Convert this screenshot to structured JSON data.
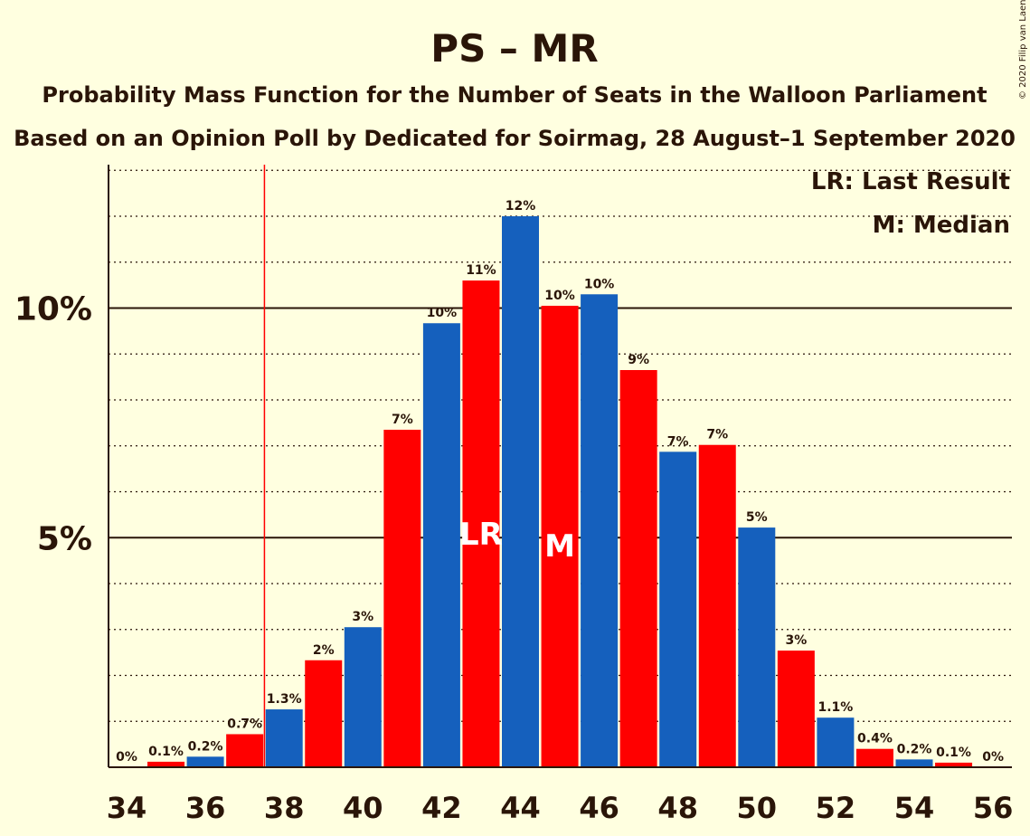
{
  "chart_data": {
    "type": "bar",
    "title": "PS – MR",
    "subtitle_lines": [
      "Probability Mass Function for the Number of Seats in the Walloon Parliament",
      "Based on an Opinion Poll by Dedicated for Soirmag, 28 August–1 September 2020"
    ],
    "copyright": "© 2020 Filip van Laenen",
    "legend": [
      "LR: Last Result",
      "M: Median"
    ],
    "xlabel": "",
    "ylabel": "",
    "categories": [
      34,
      35,
      36,
      37,
      38,
      39,
      40,
      41,
      42,
      43,
      44,
      45,
      46,
      47,
      48,
      49,
      50,
      51,
      52,
      53,
      54,
      55,
      56
    ],
    "values": [
      0.0,
      0.12,
      0.23,
      0.72,
      1.26,
      2.33,
      3.05,
      7.35,
      9.67,
      10.6,
      12.0,
      10.05,
      10.3,
      8.65,
      6.87,
      7.02,
      5.22,
      2.54,
      1.08,
      0.4,
      0.17,
      0.1,
      0.0
    ],
    "value_labels": [
      "0%",
      "0.1%",
      "0.2%",
      "0.7%",
      "1.3%",
      "2%",
      "3%",
      "7%",
      "10%",
      "11%",
      "12%",
      "10%",
      "10%",
      "9%",
      "7%",
      "7%",
      "5%",
      "3%",
      "1.1%",
      "0.4%",
      "0.2%",
      "0.1%",
      "0%"
    ],
    "bar_colors": [
      "#1560bd",
      "#ff0000"
    ],
    "ylim": [
      0,
      13.1
    ],
    "yticks": [
      {
        "value": 5,
        "label": "5%"
      },
      {
        "value": 10,
        "label": "10%"
      }
    ],
    "minor_grid_step": 1,
    "xticks": [
      34,
      36,
      38,
      40,
      42,
      44,
      46,
      48,
      50,
      52,
      54,
      56
    ],
    "last_result": {
      "seats": 43,
      "label": "LR",
      "line_at": 37.5
    },
    "median": {
      "seats": 45,
      "label": "M"
    },
    "grid": true,
    "legend_placement": "top-right"
  }
}
